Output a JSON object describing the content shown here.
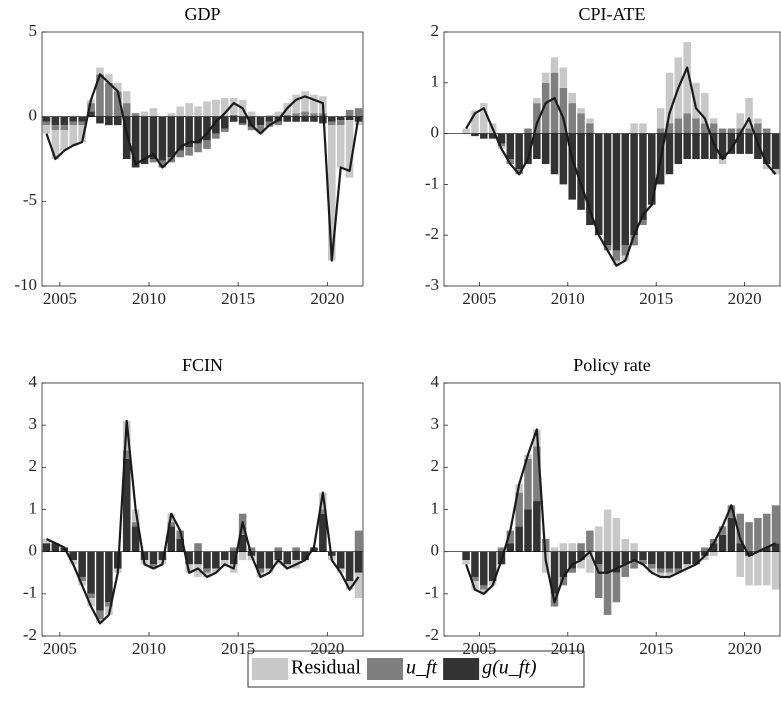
{
  "legend": [
    {
      "name": "Residual",
      "color": "#c8c8c8"
    },
    {
      "name": "u_ft",
      "color": "#7f7f7f"
    },
    {
      "name": "g(u_ft)",
      "color": "#333333"
    }
  ],
  "chart_data": [
    {
      "type": "bar",
      "title": "GDP",
      "xlim": [
        2004,
        2022
      ],
      "xticks": [
        2005,
        2010,
        2015,
        2020
      ],
      "ylim": [
        -10,
        5
      ],
      "yticks": [
        -10,
        -5,
        0,
        5
      ],
      "x": [
        2004.25,
        2004.75,
        2005.25,
        2005.75,
        2006.25,
        2006.75,
        2007.25,
        2007.75,
        2008.25,
        2008.75,
        2009.25,
        2009.75,
        2010.25,
        2010.75,
        2011.25,
        2011.75,
        2012.25,
        2012.75,
        2013.25,
        2013.75,
        2014.25,
        2014.75,
        2015.25,
        2015.75,
        2016.25,
        2016.75,
        2017.25,
        2017.75,
        2018.25,
        2018.75,
        2019.25,
        2019.75,
        2020.25,
        2020.75,
        2021.25,
        2021.75
      ],
      "series": [
        {
          "values": [
            -0.5,
            -1.7,
            -1.2,
            -1.2,
            -1.0,
            0.2,
            0.4,
            0.5,
            0.5,
            0.7,
            0.0,
            0.3,
            0.5,
            0.0,
            0.2,
            0.6,
            0.8,
            0.6,
            0.9,
            1.0,
            1.1,
            1.0,
            1.0,
            0.3,
            -0.1,
            0.1,
            0.3,
            0.7,
            1.1,
            1.2,
            1.1,
            1.0,
            -8.0,
            -2.5,
            -3.4,
            -0.2
          ]
        },
        {
          "values": [
            -0.2,
            -0.3,
            -0.3,
            -0.2,
            -0.2,
            0.5,
            2.5,
            2.0,
            1.5,
            0.8,
            0.2,
            0.0,
            -0.2,
            -0.4,
            -0.3,
            -0.4,
            -0.5,
            -0.5,
            -0.5,
            -0.3,
            -0.2,
            0.1,
            -0.1,
            -0.2,
            -0.4,
            -0.3,
            -0.2,
            0.1,
            0.2,
            0.3,
            0.2,
            0.2,
            -0.2,
            -0.3,
            0.4,
            0.5
          ]
        },
        {
          "values": [
            -0.3,
            -0.5,
            -0.5,
            -0.3,
            -0.3,
            0.3,
            -0.4,
            -0.5,
            -0.5,
            -2.5,
            -3.0,
            -2.8,
            -2.5,
            -2.6,
            -2.4,
            -2.0,
            -1.8,
            -1.6,
            -1.4,
            -1.0,
            -0.7,
            -0.3,
            -0.4,
            -0.6,
            -0.5,
            -0.3,
            -0.3,
            -0.3,
            -0.3,
            -0.3,
            -0.3,
            -0.4,
            -0.3,
            -0.2,
            -0.2,
            -0.3
          ]
        }
      ],
      "line": {
        "color": "#1a1a1a",
        "values": [
          -1.0,
          -2.5,
          -2.0,
          -1.7,
          -1.5,
          1.0,
          2.5,
          2.0,
          1.5,
          -1.0,
          -2.8,
          -2.5,
          -2.2,
          -3.0,
          -2.5,
          -1.8,
          -1.5,
          -1.5,
          -1.0,
          -0.3,
          0.2,
          0.8,
          0.5,
          -0.5,
          -1.0,
          -0.5,
          -0.2,
          0.5,
          1.0,
          1.2,
          1.0,
          0.8,
          -8.5,
          -3.0,
          -3.2,
          0.0
        ]
      }
    },
    {
      "type": "bar",
      "title": "CPI-ATE",
      "xlim": [
        2003,
        2022
      ],
      "xticks": [
        2005,
        2010,
        2015,
        2020
      ],
      "ylim": [
        -3,
        2
      ],
      "yticks": [
        -3,
        -2,
        -1,
        0,
        1,
        2
      ],
      "x": [
        2004.25,
        2004.75,
        2005.25,
        2005.75,
        2006.25,
        2006.75,
        2007.25,
        2007.75,
        2008.25,
        2008.75,
        2009.25,
        2009.75,
        2010.25,
        2010.75,
        2011.25,
        2011.75,
        2012.25,
        2012.75,
        2013.25,
        2013.75,
        2014.25,
        2014.75,
        2015.25,
        2015.75,
        2016.25,
        2016.75,
        2017.25,
        2017.75,
        2018.25,
        2018.75,
        2019.25,
        2019.75,
        2020.25,
        2020.75,
        2021.25,
        2021.75
      ],
      "series": [
        {
          "values": [
            0.1,
            0.45,
            0.6,
            0.2,
            -0.05,
            0.0,
            0.0,
            0.0,
            0.1,
            0.2,
            0.3,
            0.4,
            0.2,
            0.1,
            0.1,
            0.0,
            0.0,
            -0.1,
            -0.1,
            0.2,
            0.2,
            0.0,
            0.4,
            1.0,
            1.2,
            1.4,
            0.7,
            0.6,
            0.1,
            -0.1,
            0.0,
            0.3,
            0.6,
            0.1,
            -0.1,
            -0.1
          ]
        },
        {
          "values": [
            0,
            0,
            0,
            0,
            -0.05,
            -0.1,
            -0.1,
            0.1,
            0.6,
            1.0,
            1.2,
            0.9,
            0.6,
            0.4,
            0.2,
            0.0,
            -0.1,
            -0.2,
            -0.2,
            -0.2,
            -0.1,
            0.0,
            0.1,
            0.2,
            0.3,
            0.4,
            0.3,
            0.2,
            0.2,
            0.1,
            0.1,
            0.1,
            0.1,
            0.2,
            0.1,
            0.0
          ]
        },
        {
          "values": [
            0,
            -0.05,
            -0.1,
            -0.1,
            -0.2,
            -0.5,
            -0.7,
            -0.6,
            -0.5,
            -0.6,
            -0.8,
            -1.0,
            -1.3,
            -1.5,
            -1.8,
            -2.0,
            -2.2,
            -2.3,
            -2.2,
            -2.0,
            -1.7,
            -1.4,
            -1.0,
            -0.8,
            -0.6,
            -0.5,
            -0.5,
            -0.5,
            -0.5,
            -0.5,
            -0.4,
            -0.4,
            -0.4,
            -0.5,
            -0.6,
            -0.7
          ]
        }
      ],
      "line": {
        "color": "#1a1a1a",
        "values": [
          0.1,
          0.4,
          0.5,
          0.1,
          -0.3,
          -0.6,
          -0.8,
          -0.5,
          0.2,
          0.6,
          0.7,
          0.3,
          -0.5,
          -1.0,
          -1.5,
          -2.0,
          -2.3,
          -2.6,
          -2.5,
          -2.0,
          -1.6,
          -1.4,
          -0.5,
          0.4,
          0.9,
          1.3,
          0.5,
          0.3,
          -0.2,
          -0.5,
          -0.3,
          0.0,
          0.3,
          -0.2,
          -0.6,
          -0.8
        ]
      }
    },
    {
      "type": "bar",
      "title": "FCIN",
      "xlim": [
        2004,
        2022
      ],
      "xticks": [
        2005,
        2010,
        2015,
        2020
      ],
      "ylim": [
        -2,
        4
      ],
      "yticks": [
        -2,
        -1,
        0,
        1,
        2,
        3,
        4
      ],
      "x": [
        2004.25,
        2004.75,
        2005.25,
        2005.75,
        2006.25,
        2006.75,
        2007.25,
        2007.75,
        2008.25,
        2008.75,
        2009.25,
        2009.75,
        2010.25,
        2010.75,
        2011.25,
        2011.75,
        2012.25,
        2012.75,
        2013.25,
        2013.75,
        2014.25,
        2014.75,
        2015.25,
        2015.75,
        2016.25,
        2016.75,
        2017.25,
        2017.75,
        2018.25,
        2018.75,
        2019.25,
        2019.75,
        2020.25,
        2020.75,
        2021.25,
        2021.75
      ],
      "series": [
        {
          "values": [
            0.1,
            0,
            0,
            -0.1,
            -0.1,
            -0.2,
            -0.1,
            -0.2,
            -0.1,
            0.7,
            0.3,
            -0.1,
            0,
            -0.1,
            0.2,
            0,
            -0.2,
            -0.3,
            -0.1,
            -0.1,
            -0.1,
            -0.2,
            -0.2,
            -0.1,
            -0.1,
            -0.1,
            -0.1,
            -0.1,
            -0.2,
            0,
            0,
            0.4,
            -0.1,
            -0.1,
            -0.2,
            -0.6
          ]
        },
        {
          "values": [
            0,
            0,
            0,
            0,
            -0.1,
            -0.1,
            -0.2,
            -0.1,
            0,
            0.2,
            0.1,
            0,
            -0.1,
            0,
            0.1,
            0.2,
            0,
            0.2,
            -0.1,
            0,
            0,
            0.1,
            0.5,
            0.1,
            -0.1,
            0,
            0.1,
            0,
            0.1,
            0,
            0,
            0.1,
            0,
            0,
            0,
            0.5
          ]
        },
        {
          "values": [
            0.2,
            0.2,
            0.1,
            -0.2,
            -0.6,
            -1.0,
            -1.4,
            -1.2,
            -0.4,
            2.2,
            0.6,
            -0.2,
            -0.3,
            -0.2,
            0.6,
            0.3,
            -0.3,
            -0.3,
            -0.4,
            -0.4,
            -0.2,
            -0.3,
            0.4,
            -0.1,
            -0.4,
            -0.4,
            -0.2,
            -0.3,
            -0.2,
            -0.2,
            0.1,
            0.9,
            -0.1,
            -0.4,
            -0.7,
            -0.5
          ]
        }
      ],
      "line": {
        "color": "#1a1a1a",
        "values": [
          0.3,
          0.2,
          0.1,
          -0.3,
          -0.8,
          -1.3,
          -1.7,
          -1.5,
          -0.5,
          3.1,
          1.0,
          -0.3,
          -0.4,
          -0.3,
          0.9,
          0.5,
          -0.5,
          -0.4,
          -0.6,
          -0.5,
          -0.3,
          -0.4,
          0.7,
          -0.1,
          -0.6,
          -0.5,
          -0.2,
          -0.4,
          -0.3,
          -0.2,
          0.1,
          1.4,
          -0.2,
          -0.5,
          -0.9,
          -0.6
        ]
      }
    },
    {
      "type": "bar",
      "title": "Policy rate",
      "xlim": [
        2003,
        2022
      ],
      "xticks": [
        2005,
        2010,
        2015,
        2020
      ],
      "ylim": [
        -2,
        4
      ],
      "yticks": [
        -2,
        -1,
        0,
        1,
        2,
        3,
        4
      ],
      "x": [
        2004.25,
        2004.75,
        2005.25,
        2005.75,
        2006.25,
        2006.75,
        2007.25,
        2007.75,
        2008.25,
        2008.75,
        2009.25,
        2009.75,
        2010.25,
        2010.75,
        2011.25,
        2011.75,
        2012.25,
        2012.75,
        2013.25,
        2013.75,
        2014.25,
        2014.75,
        2015.25,
        2015.75,
        2016.25,
        2016.75,
        2017.25,
        2017.75,
        2018.25,
        2018.75,
        2019.25,
        2019.75,
        2020.25,
        2020.75,
        2021.25,
        2021.75
      ],
      "series": [
        {
          "values": [
            -0.1,
            -0.2,
            -0.1,
            -0.1,
            0,
            0,
            0.2,
            0.1,
            0.4,
            -0.5,
            0.1,
            0.2,
            0.2,
            -0.2,
            -0.5,
            0.6,
            1.0,
            0.8,
            0.3,
            0.2,
            0,
            -0.1,
            -0.1,
            -0.1,
            0,
            -0.1,
            0,
            -0.1,
            -0.1,
            0,
            0,
            -0.6,
            -0.7,
            -0.8,
            -0.8,
            -0.9
          ]
        },
        {
          "values": [
            0,
            -0.1,
            -0.1,
            0,
            0.1,
            0.3,
            0.8,
            1.2,
            1.3,
            0.3,
            -0.3,
            -0.2,
            -0.1,
            0.2,
            0.5,
            -0.8,
            -1.0,
            -0.7,
            -0.3,
            -0.2,
            -0.1,
            -0.1,
            -0.1,
            -0.1,
            -0.1,
            0,
            0,
            0.1,
            0.1,
            0.2,
            0.3,
            0.7,
            0.7,
            0.8,
            0.8,
            0.9
          ]
        },
        {
          "values": [
            -0.2,
            -0.6,
            -0.8,
            -0.7,
            -0.3,
            0.2,
            0.6,
            1.0,
            1.2,
            0.0,
            -1.0,
            -0.6,
            -0.4,
            -0.2,
            0.0,
            -0.3,
            -0.5,
            -0.5,
            -0.3,
            -0.2,
            -0.2,
            -0.3,
            -0.4,
            -0.4,
            -0.4,
            -0.3,
            -0.3,
            -0.1,
            0.2,
            0.4,
            0.8,
            0.2,
            -0.1,
            0.0,
            0.1,
            0.2
          ]
        }
      ],
      "line": {
        "color": "#1a1a1a",
        "values": [
          -0.3,
          -0.9,
          -1.0,
          -0.8,
          -0.2,
          0.5,
          1.6,
          2.3,
          2.9,
          -0.2,
          -1.2,
          -0.6,
          -0.3,
          -0.2,
          0.0,
          -0.5,
          -0.5,
          -0.4,
          -0.3,
          -0.2,
          -0.3,
          -0.5,
          -0.6,
          -0.6,
          -0.5,
          -0.4,
          -0.3,
          -0.1,
          0.2,
          0.6,
          1.1,
          0.3,
          -0.1,
          0.0,
          0.1,
          0.2
        ]
      }
    }
  ]
}
